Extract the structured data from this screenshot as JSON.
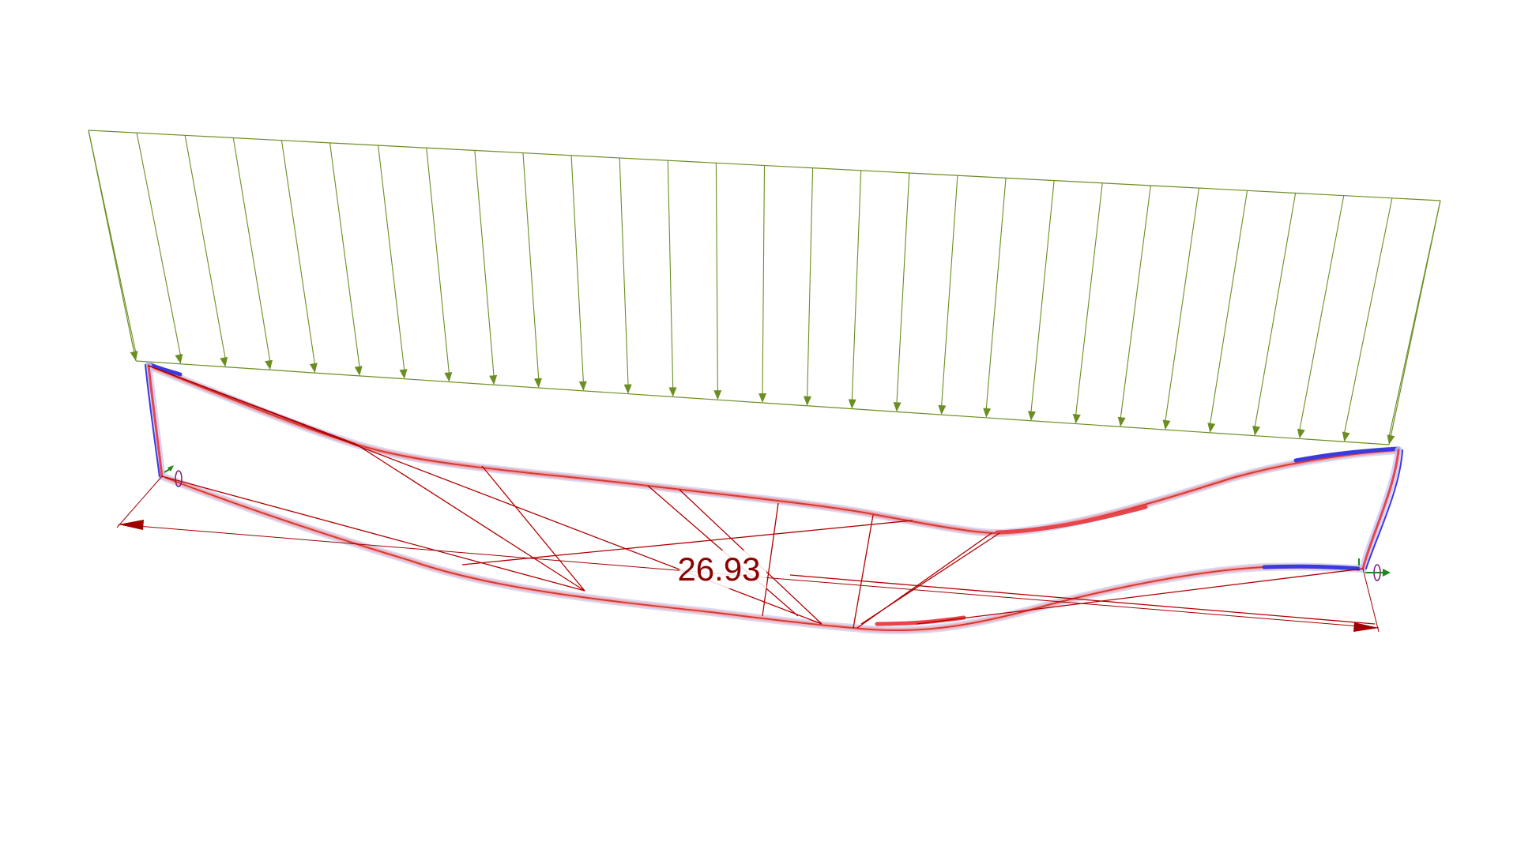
{
  "dimension": {
    "value_label": "26.93"
  },
  "load": {
    "arrow_count": 29
  },
  "colors": {
    "load": "#6b8e23",
    "dimension": "#a00000",
    "truss_member": "#b00000",
    "deformed_positive": "#e8454a",
    "deformed_negative": "#3a3ae0",
    "support_rotation": "#7a1a7a",
    "support_axis_green": "#1a8a1a",
    "background": "#ffffff"
  },
  "icons": {
    "support_left": "rotation-support-icon",
    "support_right": "rotation-support-icon"
  }
}
